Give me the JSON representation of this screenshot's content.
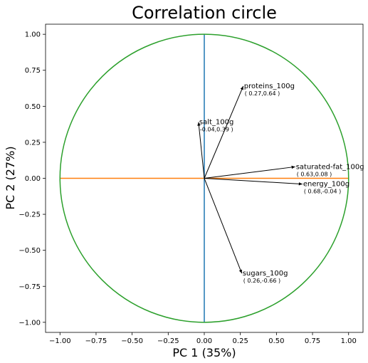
{
  "chart_data": {
    "type": "scatter",
    "title": "Correlation circle",
    "xlabel": "PC 1  (35%)",
    "ylabel": "PC 2  (27%)",
    "xlim": [
      -1.1,
      1.1
    ],
    "ylim": [
      -1.07,
      1.07
    ],
    "x_ticks": [
      -1.0,
      -0.75,
      -0.5,
      -0.25,
      0.0,
      0.25,
      0.5,
      0.75,
      1.0
    ],
    "y_ticks": [
      -1.0,
      -0.75,
      -0.5,
      -0.25,
      0.0,
      0.25,
      0.5,
      0.75,
      1.0
    ],
    "x_tick_labels": [
      "−1.00",
      "−0.75",
      "−0.50",
      "−0.25",
      "0.00",
      "0.25",
      "0.50",
      "0.75",
      "1.00"
    ],
    "y_tick_labels": [
      "−1.00",
      "−0.75",
      "−0.50",
      "−0.25",
      "0.00",
      "0.25",
      "0.50",
      "0.75",
      "1.00"
    ],
    "grid": false,
    "circle": {
      "radius": 1,
      "color": "#2ca02c"
    },
    "axis_lines": {
      "vertical_color": "#1f77b4",
      "horizontal_color": "#ff7f0e"
    },
    "arrow_color": "#000000",
    "vectors": [
      {
        "name": "proteins_100g",
        "x": 0.27,
        "y": 0.64,
        "coord_label": "( 0.27,0.64 )"
      },
      {
        "name": "salt_100g",
        "x": -0.04,
        "y": 0.39,
        "coord_label": "-0.04,0.39 )"
      },
      {
        "name": "saturated-fat_100g",
        "x": 0.63,
        "y": 0.08,
        "coord_label": "( 0.63,0.08 )"
      },
      {
        "name": "energy_100g",
        "x": 0.68,
        "y": -0.04,
        "coord_label": "( 0.68,-0.04 )"
      },
      {
        "name": "sugars_100g",
        "x": 0.26,
        "y": -0.66,
        "coord_label": "( 0.26,-0.66 )"
      }
    ]
  }
}
